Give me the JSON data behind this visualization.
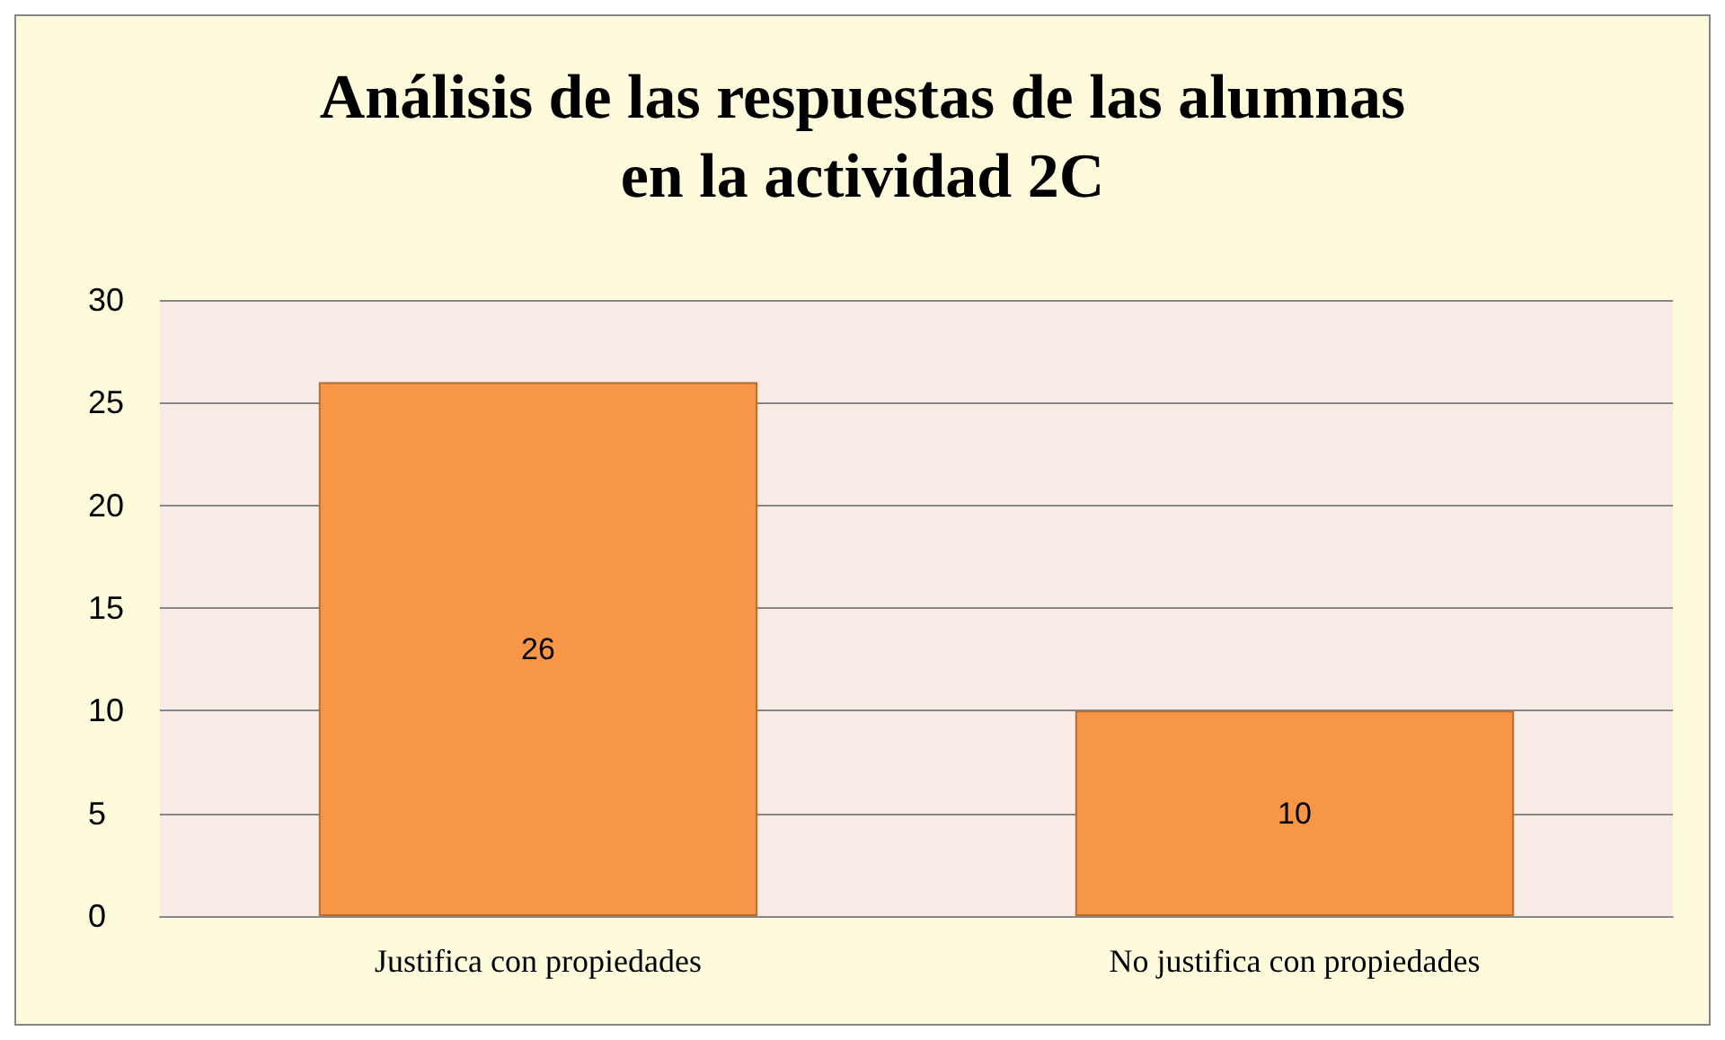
{
  "chart_data": {
    "type": "bar",
    "title": "Análisis de las respuestas de las alumnas\nen la actividad 2C",
    "categories": [
      "Justifica con propiedades",
      "No justifica con propiedades"
    ],
    "values": [
      26,
      10
    ],
    "color": "#f79646",
    "ylim": [
      0,
      30
    ],
    "yticks": [
      0,
      5,
      10,
      15,
      20,
      25,
      30
    ],
    "grid": "y",
    "data_labels": true
  }
}
